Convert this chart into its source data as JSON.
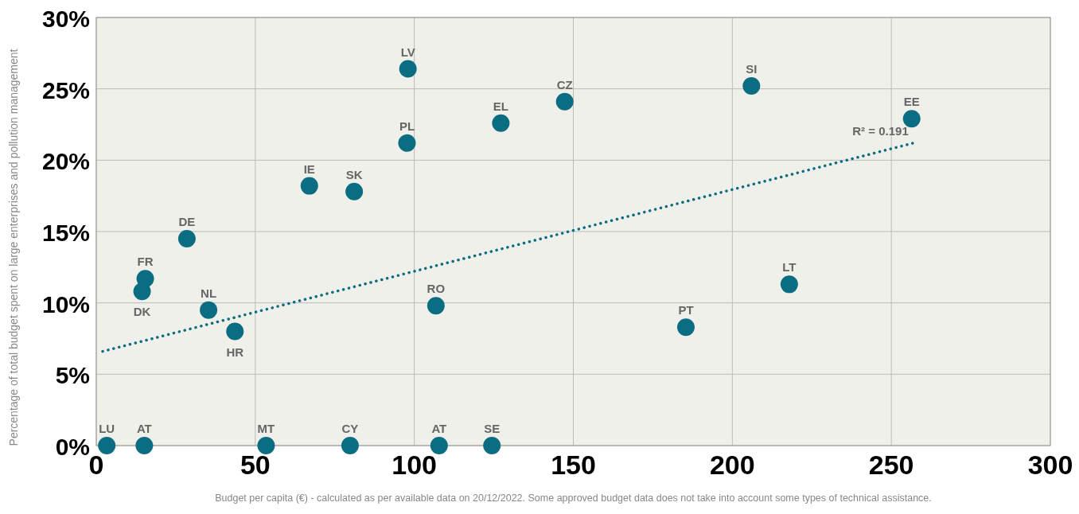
{
  "chart_data": {
    "type": "scatter",
    "xlabel": "Budget per capita (€) - calculated as per available data on 20/12/2022. Some approved budget data does not take into account some types of technical assistance.",
    "ylabel": "Percentage of total budget spent on large enterprises and pollution management",
    "xlim": [
      0,
      300
    ],
    "xticks": [
      0,
      50,
      100,
      150,
      200,
      250,
      300
    ],
    "ylim": [
      0,
      30
    ],
    "yticks": [
      {
        "value": 0,
        "label": "0%"
      },
      {
        "value": 5,
        "label": "5%"
      },
      {
        "value": 10,
        "label": "10%"
      },
      {
        "value": 15,
        "label": "15%"
      },
      {
        "value": 20,
        "label": "20%"
      },
      {
        "value": 25,
        "label": "25%"
      },
      {
        "value": 30,
        "label": "30%"
      }
    ],
    "grid": true,
    "series": [
      {
        "color": "#0b6d82",
        "marker": "circle",
        "x": [
          3.3,
          15.1,
          53.4,
          79.8,
          107.8,
          124.4,
          15.4,
          14.4,
          28.5,
          35.3,
          43.6,
          67.0,
          81.1,
          98.0,
          97.7,
          106.8,
          127.2,
          147.3,
          185.4,
          206.0,
          217.9,
          256.4
        ],
        "values": [
          0,
          0,
          0,
          0,
          0,
          0,
          11.7,
          10.8,
          14.5,
          9.5,
          8.0,
          18.2,
          17.8,
          26.4,
          21.2,
          9.8,
          22.6,
          24.1,
          8.3,
          25.2,
          11.3,
          22.9
        ]
      },
      {
        "type": "line",
        "color": "#0b6d82",
        "line_style": "dotted",
        "x": [
          2.0,
          256.9
        ],
        "values": [
          6.6,
          21.2
        ]
      }
    ],
    "annotations": [
      {
        "text": "LU",
        "x": 3.3,
        "y": 0
      },
      {
        "text": "AT",
        "x": 15.1,
        "y": 0
      },
      {
        "text": "MT",
        "x": 53.4,
        "y": 0
      },
      {
        "text": "CY",
        "x": 79.8,
        "y": 0
      },
      {
        "text": "AT",
        "x": 107.8,
        "y": 0
      },
      {
        "text": "SE",
        "x": 124.4,
        "y": 0
      },
      {
        "text": "FR",
        "x": 15.4,
        "y": 11.7
      },
      {
        "text": "DK",
        "x": 14.4,
        "y": 10.8
      },
      {
        "text": "DE",
        "x": 28.5,
        "y": 14.5
      },
      {
        "text": "NL",
        "x": 35.3,
        "y": 9.5
      },
      {
        "text": "HR",
        "x": 43.6,
        "y": 8.0
      },
      {
        "text": "IE",
        "x": 67.0,
        "y": 18.2
      },
      {
        "text": "SK",
        "x": 81.1,
        "y": 17.8
      },
      {
        "text": "LV",
        "x": 98.0,
        "y": 26.4
      },
      {
        "text": "PL",
        "x": 97.7,
        "y": 21.2
      },
      {
        "text": "RO",
        "x": 106.8,
        "y": 9.8
      },
      {
        "text": "EL",
        "x": 127.2,
        "y": 22.6
      },
      {
        "text": "CZ",
        "x": 147.3,
        "y": 24.1
      },
      {
        "text": "PT",
        "x": 185.4,
        "y": 8.3
      },
      {
        "text": "SI",
        "x": 206.0,
        "y": 25.2
      },
      {
        "text": "LT",
        "x": 217.9,
        "y": 11.3
      },
      {
        "text": "EE",
        "x": 256.4,
        "y": 22.9
      },
      {
        "text": "R² = 0.191",
        "x": 256.9,
        "y": 21.2
      }
    ]
  }
}
